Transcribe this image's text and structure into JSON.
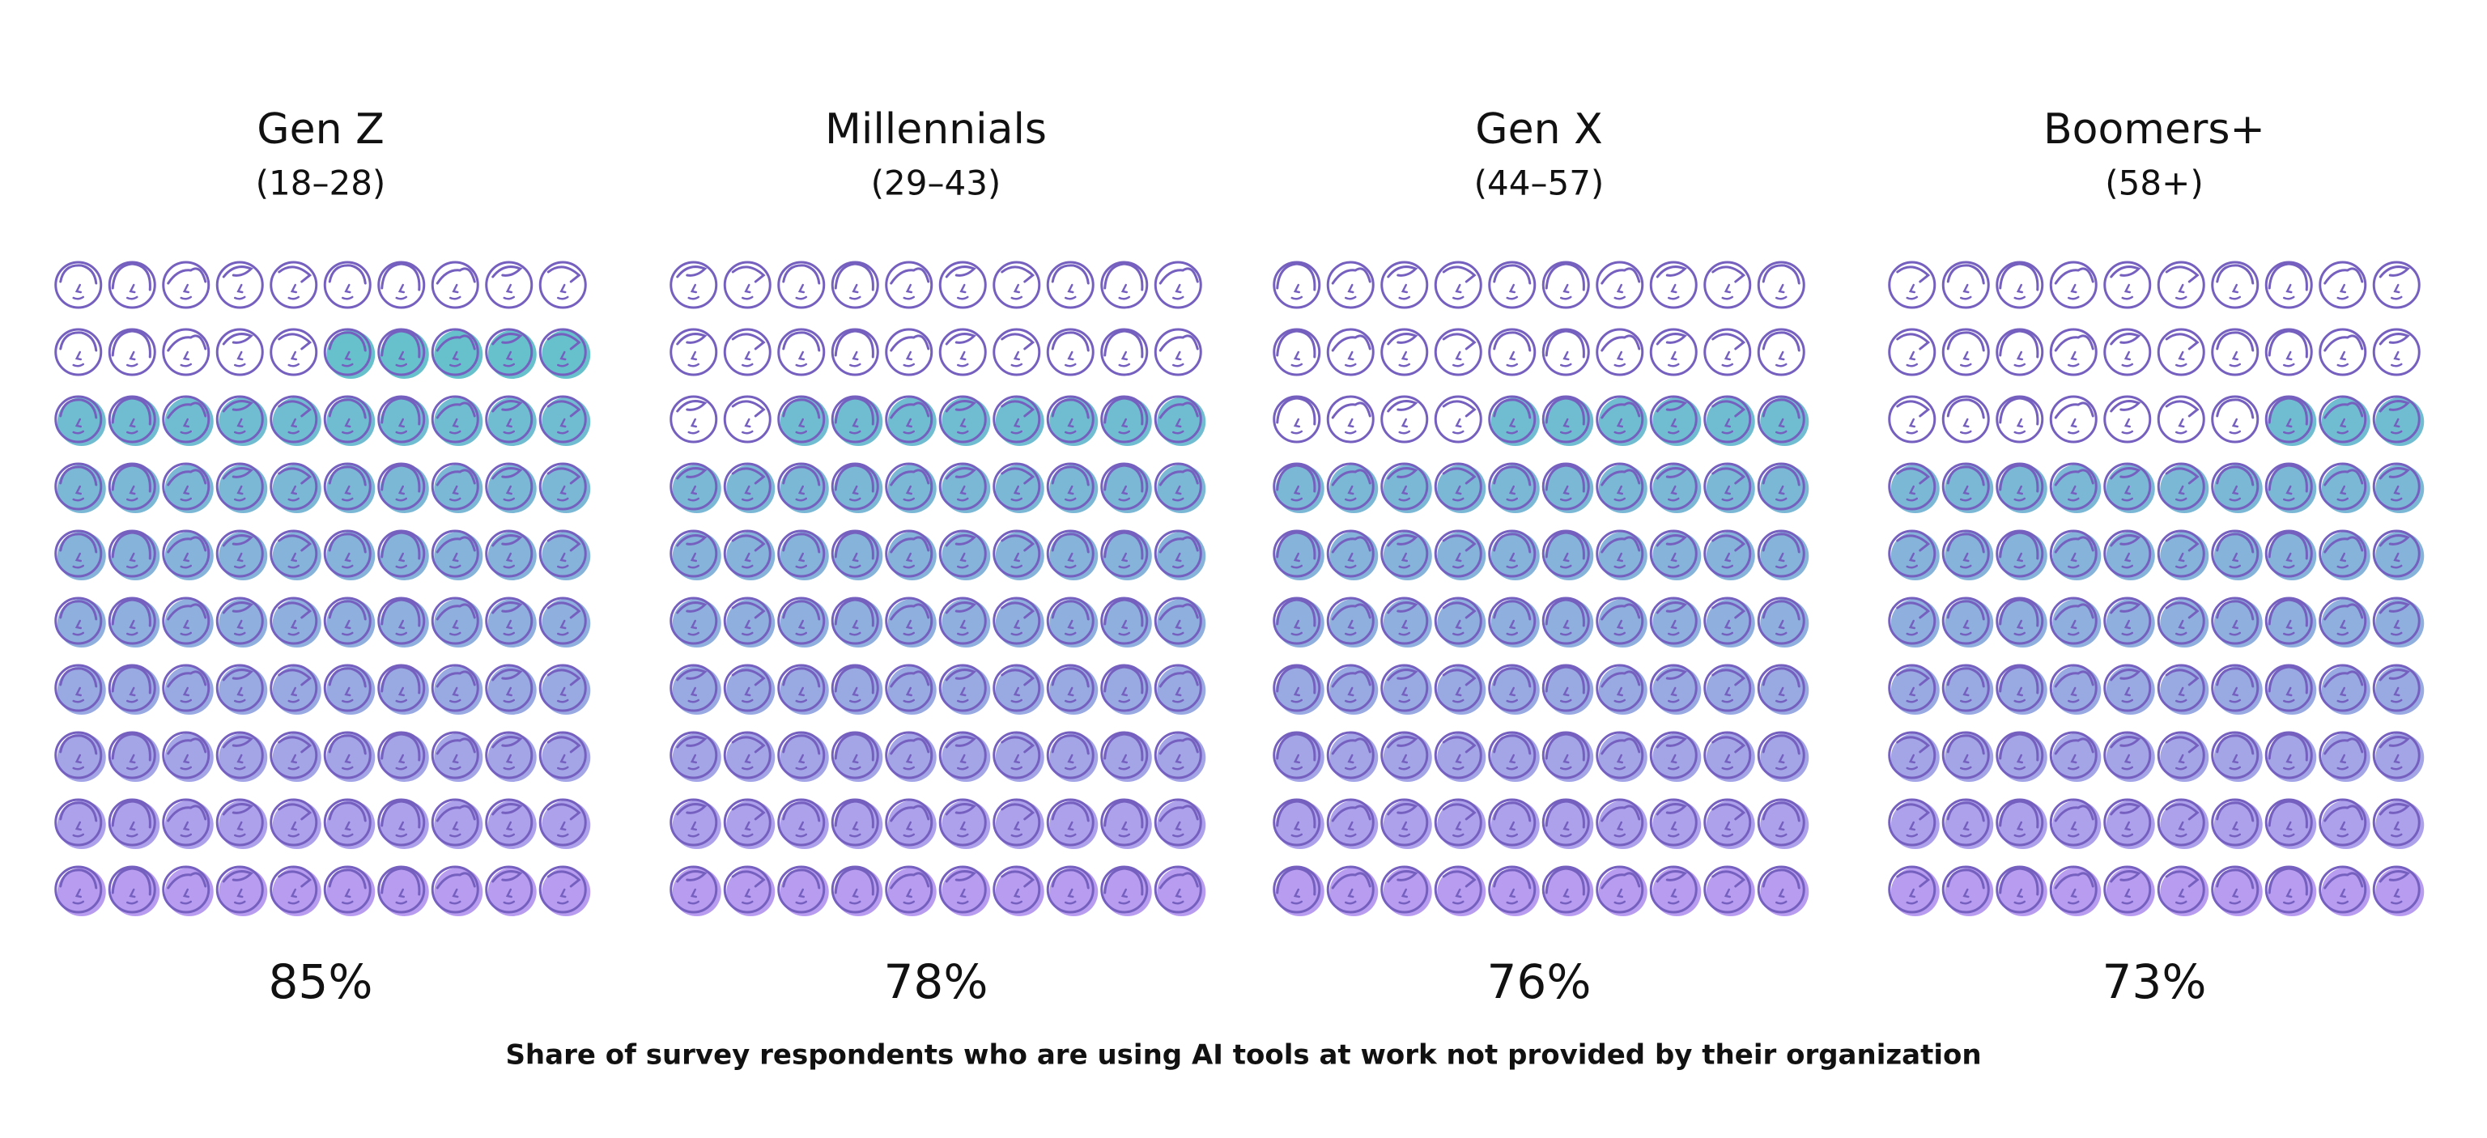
{
  "chart_data": {
    "type": "waffle",
    "categories": [
      "Gen Z",
      "Millennials",
      "Gen X",
      "Boomers+"
    ],
    "subtitles": [
      "(18–28)",
      "(29–43)",
      "(44–57)",
      "(58+)"
    ],
    "values": [
      85,
      78,
      76,
      73
    ],
    "value_labels": [
      "85%",
      "78%",
      "76%",
      "73%"
    ],
    "caption": "Share of survey respondents who are using AI tools at work not provided by their organization",
    "color_top": "#5cc6c8",
    "color_bottom": "#b89cf0",
    "outline_color": "#7560bf"
  }
}
